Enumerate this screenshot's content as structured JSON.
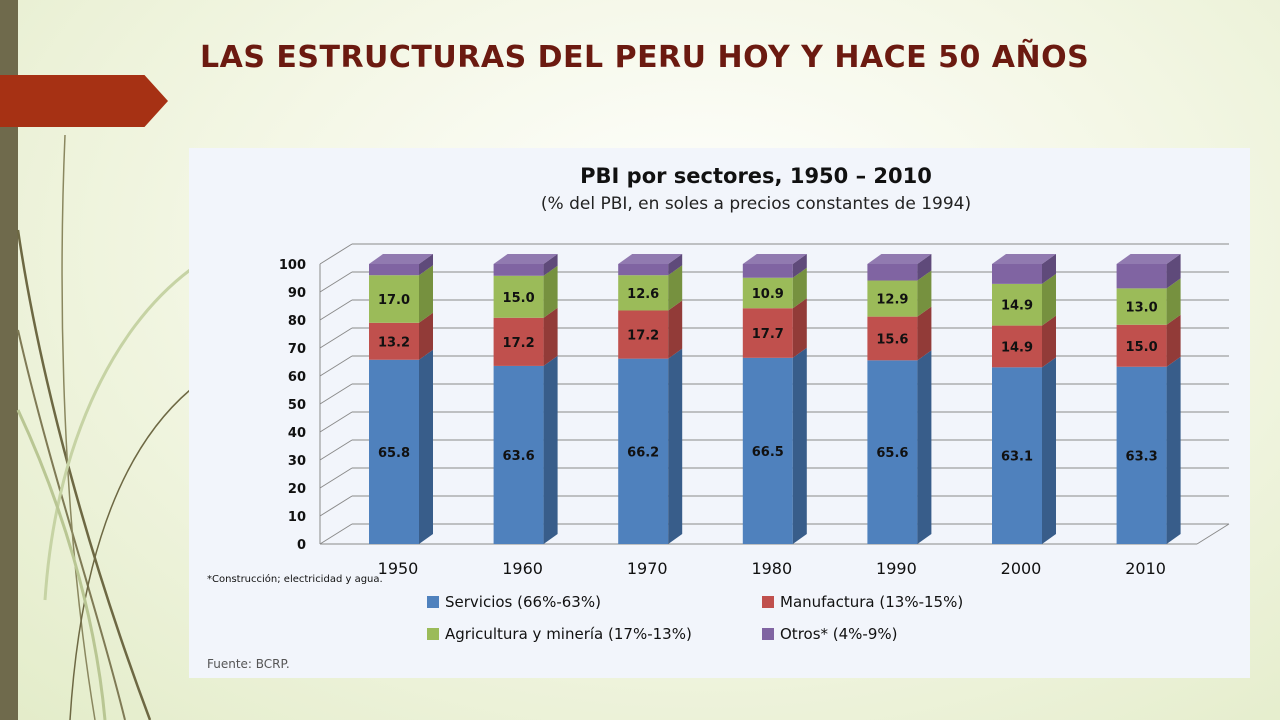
{
  "slide": {
    "title": "LAS ESTRUCTURAS DEL PERU HOY Y HACE 50 AÑOS"
  },
  "chart_data": {
    "type": "bar",
    "stacked": true,
    "three_d": true,
    "title": "PBI por sectores, 1950 – 2010",
    "subtitle": "(% del PBI, en soles a precios constantes de 1994)",
    "categories": [
      "1950",
      "1960",
      "1970",
      "1980",
      "1990",
      "2000",
      "2010"
    ],
    "ylim": [
      0,
      100
    ],
    "yticks": [
      0,
      10,
      20,
      30,
      40,
      50,
      60,
      70,
      80,
      90,
      100
    ],
    "grid": true,
    "legend_position": "bottom",
    "series": [
      {
        "name": "Servicios (66%-63%)",
        "color": "#4f81bd",
        "side_color": "#385d8a",
        "values": [
          65.8,
          63.6,
          66.2,
          66.5,
          65.6,
          63.1,
          63.3
        ],
        "labels": [
          "65.8",
          "63.6",
          "66.2",
          "66.5",
          "65.6",
          "63.1",
          "63.3"
        ]
      },
      {
        "name": "Manufactura (13%-15%)",
        "color": "#c0504d",
        "side_color": "#923b38",
        "values": [
          13.2,
          17.2,
          17.2,
          17.7,
          15.6,
          14.9,
          15.0
        ],
        "labels": [
          "13.2",
          "17.2",
          "17.2",
          "17.7",
          "15.6",
          "14.9",
          "15.0"
        ]
      },
      {
        "name": "Agricultura y minería (17%-13%)",
        "color": "#9bbb59",
        "side_color": "#76913f",
        "values": [
          17.0,
          15.0,
          12.6,
          10.9,
          12.9,
          14.9,
          13.0
        ],
        "labels": [
          "17.0",
          "15.0",
          "12.6",
          "10.9",
          "12.9",
          "14.9",
          "13.0"
        ]
      },
      {
        "name": "Otros* (4%-9%)",
        "color": "#8064a2",
        "side_color": "#5f4a7a",
        "values": [
          4.0,
          4.2,
          4.0,
          4.9,
          5.9,
          7.1,
          8.7
        ],
        "labels": []
      }
    ],
    "footnote": "*Construcción; electricidad y agua.",
    "source": "Fuente: BCRP."
  }
}
